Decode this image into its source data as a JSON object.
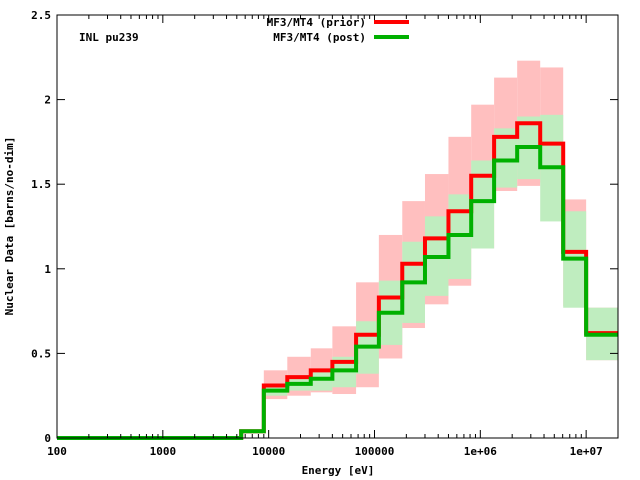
{
  "chart_data": {
    "type": "line",
    "title": "",
    "annotation": "INL pu239",
    "xlabel": "Energy [eV]",
    "ylabel": "Nuclear Data [barns/no-dim]",
    "xscale": "log",
    "xlim": [
      100,
      20000000
    ],
    "ylim": [
      0,
      2.5
    ],
    "xticks": [
      {
        "value": 100,
        "label": "100"
      },
      {
        "value": 1000,
        "label": "1000"
      },
      {
        "value": 10000,
        "label": "10000"
      },
      {
        "value": 100000,
        "label": "100000"
      },
      {
        "value": 1000000,
        "label": "1e+06"
      },
      {
        "value": 10000000,
        "label": "1e+07"
      }
    ],
    "yticks": [
      {
        "value": 0,
        "label": "0"
      },
      {
        "value": 0.5,
        "label": "0.5"
      },
      {
        "value": 1,
        "label": "1"
      },
      {
        "value": 1.5,
        "label": "1.5"
      },
      {
        "value": 2,
        "label": "2"
      },
      {
        "value": 2.5,
        "label": "2.5"
      }
    ],
    "legend_position": "top-center",
    "bin_edges": [
      100,
      5500,
      9000,
      15000,
      25000,
      40000,
      67000,
      110000,
      183000,
      300000,
      500000,
      820000,
      1350000,
      2230000,
      3680000,
      6070000,
      10000000,
      20000000
    ],
    "series": [
      {
        "name": "MF3/MT4 (prior)",
        "color": "#ff0000",
        "band_color": "#ffbfbf",
        "values": [
          0.0,
          0.04,
          0.31,
          0.36,
          0.4,
          0.45,
          0.61,
          0.83,
          1.03,
          1.18,
          1.34,
          1.55,
          1.78,
          1.86,
          1.74,
          1.1,
          0.62
        ],
        "band_low": [
          0.0,
          0.04,
          0.23,
          0.25,
          0.27,
          0.26,
          0.3,
          0.47,
          0.65,
          0.79,
          0.9,
          1.12,
          1.46,
          1.49,
          1.51,
          0.78,
          0.46
        ],
        "band_high": [
          0.0,
          0.04,
          0.4,
          0.48,
          0.53,
          0.66,
          0.92,
          1.2,
          1.4,
          1.56,
          1.78,
          1.97,
          2.13,
          2.23,
          2.19,
          1.41,
          0.77
        ]
      },
      {
        "name": "MF3/MT4 (post)",
        "color": "#00b000",
        "band_color": "#bfedbf",
        "values": [
          0.0,
          0.04,
          0.28,
          0.32,
          0.35,
          0.4,
          0.54,
          0.74,
          0.92,
          1.07,
          1.2,
          1.4,
          1.64,
          1.72,
          1.6,
          1.06,
          0.61
        ],
        "band_low": [
          0.0,
          0.04,
          0.25,
          0.28,
          0.28,
          0.3,
          0.38,
          0.55,
          0.68,
          0.84,
          0.94,
          1.12,
          1.48,
          1.53,
          1.28,
          0.77,
          0.46
        ],
        "band_high": [
          0.0,
          0.04,
          0.32,
          0.37,
          0.4,
          0.48,
          0.69,
          0.93,
          1.16,
          1.31,
          1.44,
          1.64,
          1.83,
          1.9,
          1.91,
          1.34,
          0.77
        ]
      }
    ]
  }
}
